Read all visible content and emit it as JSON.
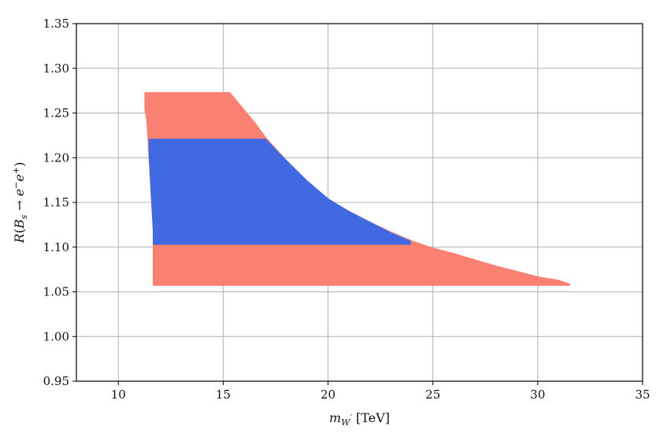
{
  "chart_data": {
    "type": "area",
    "xlabel": "m_{W'} [TeV]",
    "ylabel": "R(B_s → e⁻e⁺)",
    "xlim": [
      8,
      35
    ],
    "ylim": [
      0.95,
      1.35
    ],
    "xticks": [
      10,
      15,
      20,
      25,
      30,
      35
    ],
    "yticks": [
      0.95,
      1.0,
      1.05,
      1.1,
      1.15,
      1.2,
      1.25,
      1.3,
      1.35
    ],
    "ytick_labels": [
      "0.95",
      "1.00",
      "1.05",
      "1.10",
      "1.15",
      "1.20",
      "1.25",
      "1.30",
      "1.35"
    ],
    "grid": true,
    "series": [
      {
        "color": "#FA8072",
        "region": [
          [
            11.3,
            1.272
          ],
          [
            15.3,
            1.272
          ],
          [
            15.8,
            1.258
          ],
          [
            16.5,
            1.238
          ],
          [
            17.0,
            1.222
          ],
          [
            18.0,
            1.196
          ],
          [
            19.0,
            1.173
          ],
          [
            20.0,
            1.153
          ],
          [
            21.0,
            1.139
          ],
          [
            22.0,
            1.127
          ],
          [
            23.0,
            1.116
          ],
          [
            24.0,
            1.106
          ],
          [
            25.0,
            1.098
          ],
          [
            26.0,
            1.092
          ],
          [
            27.0,
            1.085
          ],
          [
            28.0,
            1.078
          ],
          [
            29.0,
            1.072
          ],
          [
            30.0,
            1.066
          ],
          [
            31.0,
            1.062
          ],
          [
            31.5,
            1.058
          ],
          [
            11.7,
            1.058
          ],
          [
            11.7,
            1.12
          ],
          [
            11.4,
            1.24
          ],
          [
            11.3,
            1.255
          ]
        ]
      },
      {
        "color": "#4169E1",
        "region": [
          [
            11.5,
            1.22
          ],
          [
            17.0,
            1.22
          ],
          [
            17.5,
            1.208
          ],
          [
            18.0,
            1.196
          ],
          [
            19.0,
            1.173
          ],
          [
            20.0,
            1.153
          ],
          [
            21.0,
            1.139
          ],
          [
            22.0,
            1.127
          ],
          [
            23.0,
            1.115
          ],
          [
            23.9,
            1.106
          ],
          [
            23.9,
            1.104
          ],
          [
            11.7,
            1.104
          ],
          [
            11.7,
            1.118
          ],
          [
            11.6,
            1.16
          ],
          [
            11.5,
            1.205
          ]
        ]
      }
    ]
  }
}
